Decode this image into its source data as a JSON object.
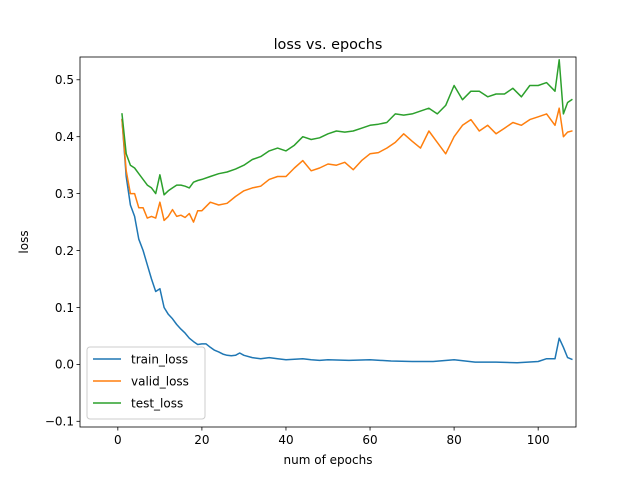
{
  "chart_data": {
    "type": "line",
    "title": "loss vs. epochs",
    "xlabel": "num of epochs",
    "ylabel": "loss",
    "xlim": [
      -9,
      109
    ],
    "ylim": [
      -0.11,
      0.54
    ],
    "xticks": [
      0,
      20,
      40,
      60,
      80,
      100
    ],
    "yticks": [
      -0.1,
      0.0,
      0.1,
      0.2,
      0.3,
      0.4,
      0.5
    ],
    "ytick_labels": [
      "−0.1",
      "0.0",
      "0.1",
      "0.2",
      "0.3",
      "0.4",
      "0.5"
    ],
    "grid": false,
    "legend_position": "lower-left",
    "series": [
      {
        "name": "train_loss",
        "color": "#1f77b4",
        "x": [
          1,
          2,
          3,
          4,
          5,
          6,
          7,
          8,
          9,
          10,
          11,
          12,
          13,
          14,
          15,
          16,
          17,
          18,
          19,
          20,
          21,
          22,
          23,
          24,
          25,
          26,
          27,
          28,
          29,
          30,
          32,
          34,
          36,
          38,
          40,
          42,
          44,
          46,
          48,
          50,
          55,
          60,
          65,
          70,
          75,
          80,
          85,
          90,
          95,
          100,
          102,
          104,
          105,
          106,
          107,
          108
        ],
        "y": [
          0.43,
          0.33,
          0.28,
          0.26,
          0.22,
          0.2,
          0.175,
          0.15,
          0.128,
          0.133,
          0.1,
          0.088,
          0.08,
          0.07,
          0.062,
          0.055,
          0.046,
          0.04,
          0.035,
          0.036,
          0.036,
          0.03,
          0.025,
          0.022,
          0.018,
          0.016,
          0.015,
          0.016,
          0.02,
          0.016,
          0.012,
          0.01,
          0.012,
          0.01,
          0.008,
          0.009,
          0.01,
          0.008,
          0.007,
          0.008,
          0.007,
          0.008,
          0.006,
          0.005,
          0.005,
          0.008,
          0.004,
          0.004,
          0.003,
          0.005,
          0.01,
          0.01,
          0.046,
          0.03,
          0.012,
          0.009
        ]
      },
      {
        "name": "valid_loss",
        "color": "#ff7f0e",
        "x": [
          1,
          2,
          3,
          4,
          5,
          6,
          7,
          8,
          9,
          10,
          11,
          12,
          13,
          14,
          15,
          16,
          17,
          18,
          19,
          20,
          22,
          24,
          26,
          28,
          30,
          32,
          34,
          36,
          38,
          40,
          42,
          44,
          46,
          48,
          50,
          52,
          54,
          56,
          58,
          60,
          62,
          64,
          66,
          68,
          70,
          72,
          74,
          76,
          78,
          80,
          82,
          84,
          86,
          88,
          90,
          92,
          94,
          96,
          98,
          100,
          102,
          104,
          105,
          106,
          107,
          108
        ],
        "y": [
          0.43,
          0.34,
          0.3,
          0.3,
          0.275,
          0.275,
          0.257,
          0.26,
          0.257,
          0.285,
          0.253,
          0.26,
          0.272,
          0.26,
          0.262,
          0.258,
          0.265,
          0.25,
          0.27,
          0.27,
          0.285,
          0.28,
          0.283,
          0.295,
          0.305,
          0.31,
          0.313,
          0.325,
          0.33,
          0.33,
          0.345,
          0.358,
          0.34,
          0.345,
          0.352,
          0.35,
          0.355,
          0.342,
          0.358,
          0.37,
          0.372,
          0.38,
          0.39,
          0.405,
          0.392,
          0.38,
          0.41,
          0.39,
          0.37,
          0.4,
          0.42,
          0.43,
          0.41,
          0.42,
          0.405,
          0.415,
          0.425,
          0.42,
          0.43,
          0.435,
          0.44,
          0.42,
          0.45,
          0.4,
          0.408,
          0.41
        ]
      },
      {
        "name": "test_loss",
        "color": "#2ca02c",
        "x": [
          1,
          2,
          3,
          4,
          5,
          6,
          7,
          8,
          9,
          10,
          11,
          12,
          13,
          14,
          15,
          16,
          17,
          18,
          19,
          20,
          22,
          24,
          26,
          28,
          30,
          32,
          34,
          36,
          38,
          40,
          42,
          44,
          46,
          48,
          50,
          52,
          54,
          56,
          58,
          60,
          62,
          64,
          66,
          68,
          70,
          72,
          74,
          76,
          78,
          80,
          82,
          84,
          86,
          88,
          90,
          92,
          94,
          96,
          98,
          100,
          102,
          104,
          105,
          106,
          107,
          108
        ],
        "y": [
          0.44,
          0.37,
          0.35,
          0.345,
          0.335,
          0.325,
          0.315,
          0.31,
          0.3,
          0.333,
          0.298,
          0.305,
          0.31,
          0.315,
          0.315,
          0.313,
          0.31,
          0.32,
          0.323,
          0.325,
          0.33,
          0.335,
          0.338,
          0.343,
          0.35,
          0.36,
          0.365,
          0.375,
          0.38,
          0.375,
          0.385,
          0.4,
          0.395,
          0.398,
          0.405,
          0.41,
          0.408,
          0.41,
          0.415,
          0.42,
          0.422,
          0.425,
          0.44,
          0.438,
          0.44,
          0.445,
          0.45,
          0.44,
          0.455,
          0.49,
          0.465,
          0.48,
          0.48,
          0.47,
          0.475,
          0.475,
          0.485,
          0.47,
          0.49,
          0.49,
          0.495,
          0.48,
          0.535,
          0.44,
          0.46,
          0.465
        ]
      }
    ]
  }
}
